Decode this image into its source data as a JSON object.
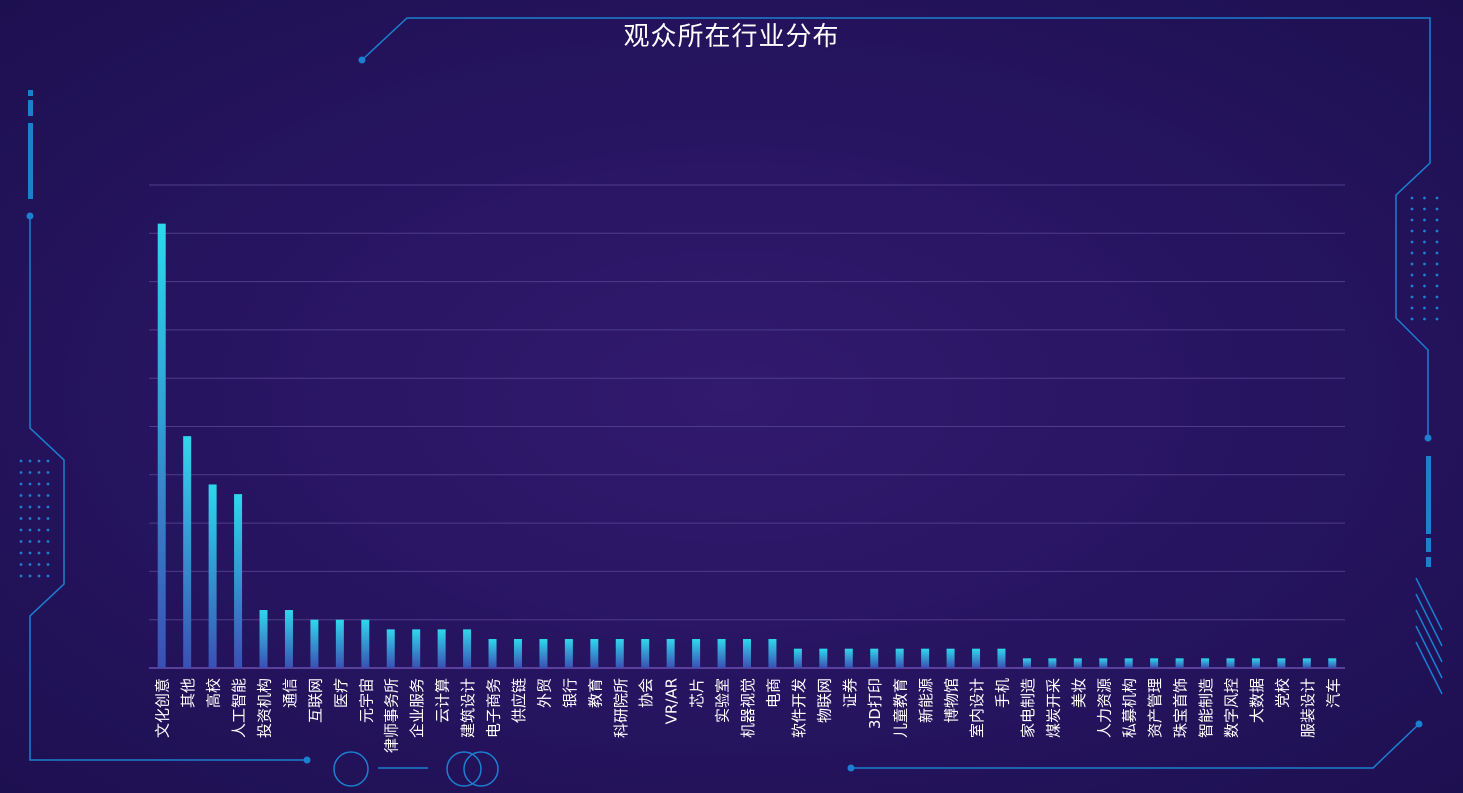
{
  "chart_data": {
    "type": "bar",
    "title": "观众所在行业分布",
    "xlabel": "",
    "ylabel": "",
    "ylim": [
      0,
      10
    ],
    "grid": true,
    "colors": {
      "bar_top": "#2fd8ec",
      "bar_bottom": "#3a4fb4",
      "grid": "#4e3c8a",
      "axis": "#6a4fb0",
      "label": "#ffffff",
      "frame": "#1c7fd0"
    },
    "categories": [
      "文化创意",
      "其他",
      "高校",
      "人工智能",
      "投资机构",
      "通信",
      "互联网",
      "医疗",
      "元宇宙",
      "律师事务所",
      "企业服务",
      "云计算",
      "建筑设计",
      "电子商务",
      "供应链",
      "外贸",
      "银行",
      "教育",
      "科研院所",
      "协会",
      "VR/AR",
      "芯片",
      "实验室",
      "机器视觉",
      "电商",
      "软件开发",
      "物联网",
      "证券",
      "3D打印",
      "儿童教育",
      "新能源",
      "博物馆",
      "室内设计",
      "手机",
      "家电制造",
      "煤炭开采",
      "美妆",
      "人力资源",
      "私募机构",
      "资产管理",
      "珠宝首饰",
      "智能制造",
      "数字风控",
      "大数据",
      "党校",
      "服装设计",
      "汽车"
    ],
    "values": [
      9.2,
      4.8,
      3.8,
      3.6,
      1.2,
      1.2,
      1.0,
      1.0,
      1.0,
      0.8,
      0.8,
      0.8,
      0.8,
      0.6,
      0.6,
      0.6,
      0.6,
      0.6,
      0.6,
      0.6,
      0.6,
      0.6,
      0.6,
      0.6,
      0.6,
      0.4,
      0.4,
      0.4,
      0.4,
      0.4,
      0.4,
      0.4,
      0.4,
      0.4,
      0.2,
      0.2,
      0.2,
      0.2,
      0.2,
      0.2,
      0.2,
      0.2,
      0.2,
      0.2,
      0.2,
      0.2,
      0.2
    ]
  }
}
